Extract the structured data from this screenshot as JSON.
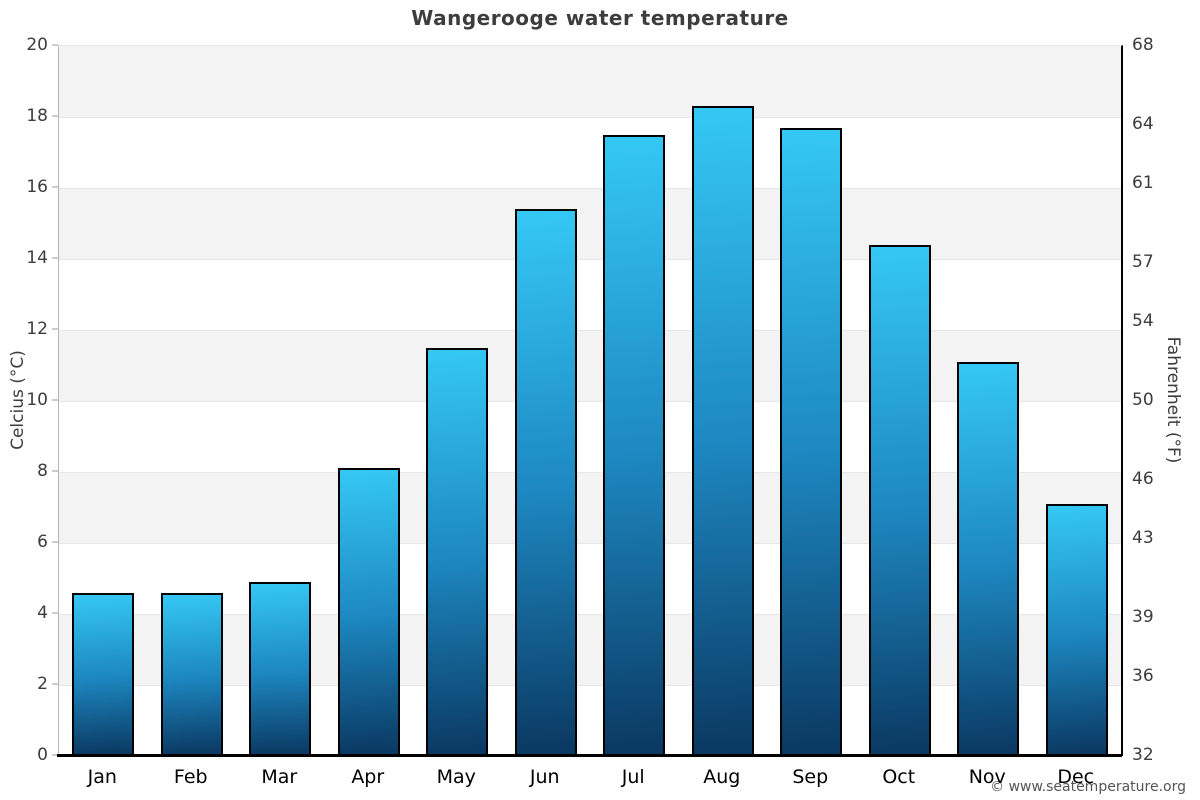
{
  "page": {
    "copyright": "© www.seatemperature.org"
  },
  "chart_data": {
    "type": "bar",
    "title": "Wangerooge water temperature",
    "categories": [
      "Jan",
      "Feb",
      "Mar",
      "Apr",
      "May",
      "Jun",
      "Jul",
      "Aug",
      "Sep",
      "Oct",
      "Nov",
      "Dec"
    ],
    "values": [
      4.6,
      4.6,
      4.9,
      8.1,
      11.5,
      15.4,
      17.5,
      18.3,
      17.7,
      14.4,
      11.1,
      7.1
    ],
    "unit": "°C",
    "ylabel": "Celcius (°C)",
    "ylabel_right": "Fahrenheit (°F)",
    "ylim": [
      0,
      20
    ],
    "yticks": [
      0,
      2,
      4,
      6,
      8,
      10,
      12,
      14,
      16,
      18,
      20
    ],
    "ylim_right": [
      32,
      68
    ],
    "yticks_right": [
      32,
      36,
      39,
      43,
      46,
      50,
      54,
      57,
      61,
      64,
      68
    ],
    "grid": "alternating-horizontal-bands",
    "gray_bands_celsius": [
      [
        2,
        4
      ],
      [
        6,
        8
      ],
      [
        10,
        12
      ],
      [
        14,
        16
      ],
      [
        18,
        20
      ]
    ],
    "legend": "none",
    "colors": {
      "bar_gradient_top": "#35c8f5",
      "bar_gradient_mid": "#1d87c0",
      "bar_gradient_bottom": "#0a3861",
      "bar_border": "#000000",
      "band_fill": "#f3f3f3",
      "gridline": "#e6e6e6",
      "baseline": "#000000"
    }
  }
}
